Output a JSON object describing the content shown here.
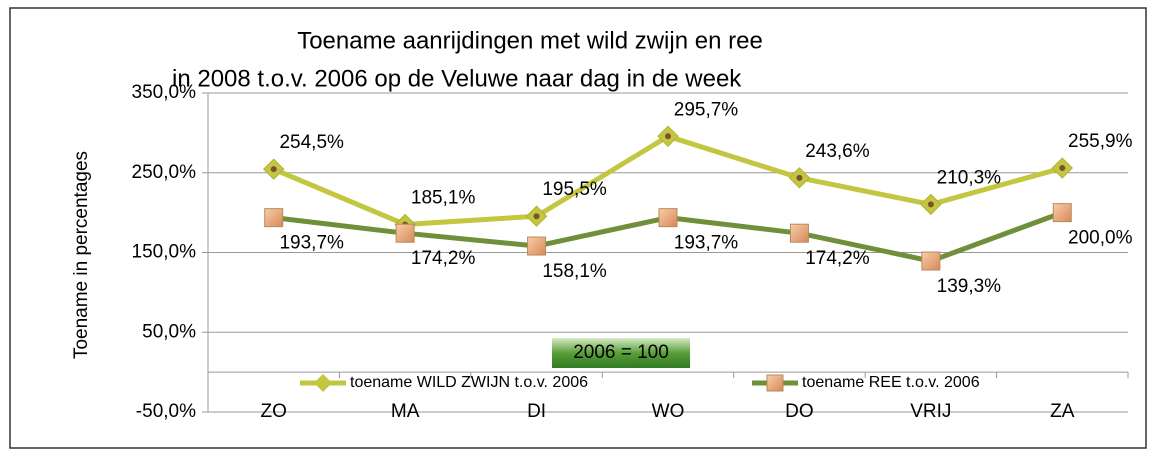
{
  "chart_data": {
    "type": "line",
    "title": [
      "Toename aanrijdingen met wild zwijn en ree",
      "in 2008  t.o.v. 2006 op de Veluwe naar dag in de week"
    ],
    "y_label": "Toename in percentages",
    "annotation": "2006 = 100",
    "categories": [
      "ZO",
      "MA",
      "DI",
      "WO",
      "DO",
      "VRIJ",
      "ZA"
    ],
    "series": [
      {
        "name": "toename WILD ZWIJN t.o.v. 2006",
        "color": "#c3c640",
        "marker": "diamond",
        "values": [
          254.5,
          185.1,
          195.5,
          295.7,
          243.6,
          210.3,
          255.9
        ],
        "value_labels": [
          "254,5%",
          "185,1%",
          "195,5%",
          "295,7%",
          "243,6%",
          "210,3%",
          "255,9%"
        ]
      },
      {
        "name": "toename REE t.o.v. 2006",
        "color": "#6f8f3a",
        "marker": "square",
        "values": [
          193.7,
          174.2,
          158.1,
          193.7,
          174.2,
          139.3,
          200.0
        ],
        "value_labels": [
          "193,7%",
          "174,2%",
          "158,1%",
          "193,7%",
          "174,2%",
          "139,3%",
          "200,0%"
        ]
      }
    ],
    "ylim": [
      -50,
      350
    ],
    "yticks": [
      {
        "value": -50,
        "label": "-50,0%"
      },
      {
        "value": 50,
        "label": "50,0%"
      },
      {
        "value": 150,
        "label": "150,0%"
      },
      {
        "value": 250,
        "label": "250,0%"
      },
      {
        "value": 350,
        "label": "350,0%"
      }
    ],
    "grid": true,
    "legend": "bottom"
  }
}
